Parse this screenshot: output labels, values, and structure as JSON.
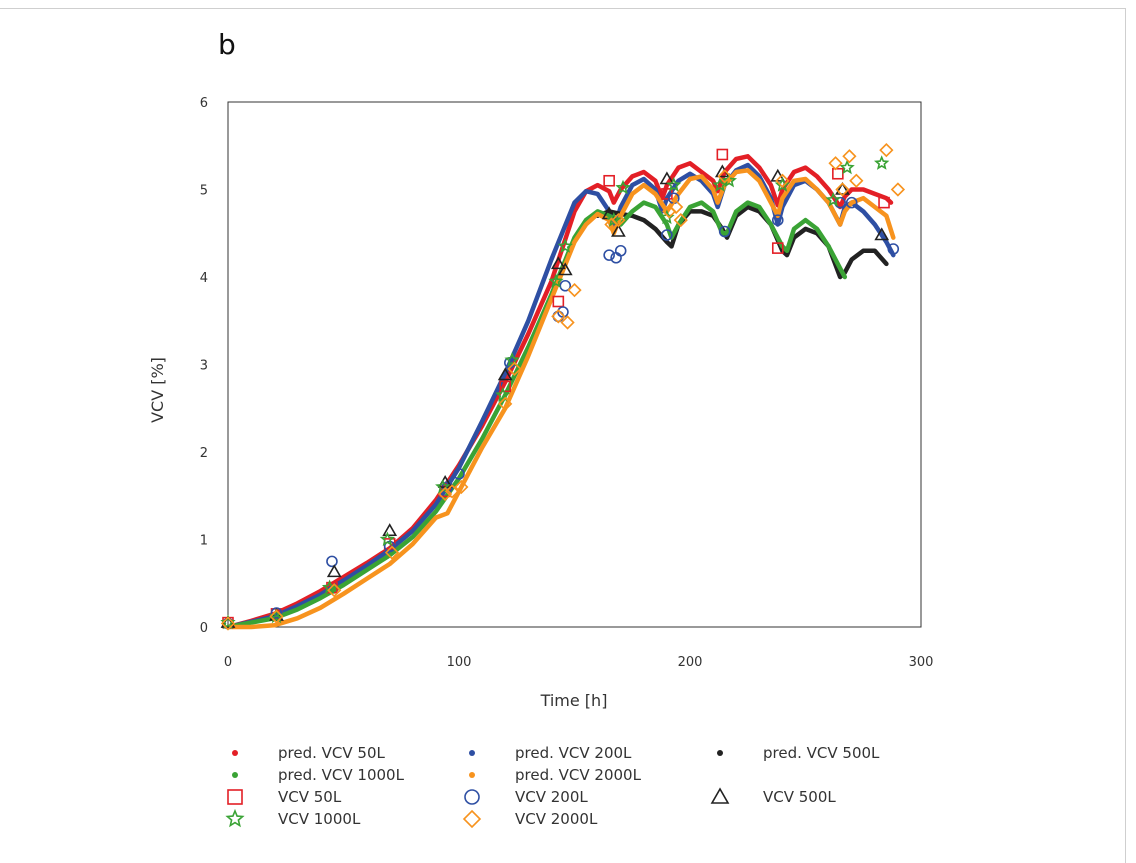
{
  "panel_label": "b",
  "colors": {
    "50L": "#e31f26",
    "200L": "#2e4fa3",
    "500L": "#222222",
    "1000L": "#3aa335",
    "2000L": "#f7931e"
  },
  "legend": [
    {
      "label": "pred. VCV 50L",
      "symbol": "dot",
      "series": "50L"
    },
    {
      "label": "pred. VCV 200L",
      "symbol": "dot",
      "series": "200L"
    },
    {
      "label": "pred. VCV 500L",
      "symbol": "dot",
      "series": "500L"
    },
    {
      "label": "pred. VCV 1000L",
      "symbol": "dot",
      "series": "1000L"
    },
    {
      "label": "pred. VCV 2000L",
      "symbol": "dot",
      "series": "2000L"
    },
    {
      "label": "VCV 50L",
      "symbol": "square",
      "series": "50L"
    },
    {
      "label": "VCV 200L",
      "symbol": "circle",
      "series": "200L"
    },
    {
      "label": "VCV 500L",
      "symbol": "triangle",
      "series": "500L"
    },
    {
      "label": "VCV 1000L",
      "symbol": "star",
      "series": "1000L"
    },
    {
      "label": "VCV 2000L",
      "symbol": "diamond",
      "series": "2000L"
    }
  ],
  "chart_data": {
    "type": "scatter",
    "title": "",
    "xlabel": "Time [h]",
    "ylabel": "VCV [%]",
    "xlim": [
      0,
      300
    ],
    "ylim": [
      0,
      6
    ],
    "xticks": [
      "0",
      "100",
      "200",
      "300"
    ],
    "yticks": [
      "0",
      "1",
      "2",
      "3",
      "4",
      "5",
      "6"
    ],
    "grid": false,
    "legend_position": "bottom",
    "prediction_series": [
      {
        "name": "pred. VCV 50L",
        "key": "50L",
        "x": [
          0,
          10,
          20,
          30,
          40,
          50,
          60,
          70,
          80,
          90,
          100,
          110,
          120,
          130,
          140,
          150,
          155,
          160,
          165,
          167,
          170,
          175,
          180,
          185,
          188,
          190,
          195,
          200,
          205,
          210,
          212,
          215,
          220,
          225,
          230,
          235,
          238,
          240,
          245,
          250,
          255,
          260,
          265,
          267,
          270,
          275,
          280,
          285,
          287
        ],
        "y": [
          0,
          0.07,
          0.15,
          0.27,
          0.41,
          0.57,
          0.73,
          0.9,
          1.13,
          1.45,
          1.85,
          2.3,
          2.8,
          3.35,
          3.95,
          4.75,
          4.98,
          5.05,
          4.98,
          4.85,
          5.0,
          5.15,
          5.2,
          5.1,
          4.9,
          5.05,
          5.25,
          5.3,
          5.2,
          5.1,
          4.98,
          5.2,
          5.35,
          5.38,
          5.25,
          5.05,
          4.82,
          5.0,
          5.2,
          5.25,
          5.15,
          5.0,
          4.8,
          4.92,
          5.0,
          5.0,
          4.95,
          4.9,
          4.85
        ]
      },
      {
        "name": "pred. VCV 200L",
        "key": "200L",
        "x": [
          0,
          10,
          20,
          30,
          40,
          50,
          60,
          70,
          80,
          90,
          100,
          110,
          120,
          130,
          140,
          150,
          155,
          160,
          165,
          167,
          170,
          175,
          180,
          185,
          188,
          190,
          195,
          200,
          205,
          210,
          212,
          215,
          220,
          225,
          230,
          235,
          238,
          240,
          245,
          250,
          255,
          260,
          265,
          267,
          270,
          275,
          280,
          285,
          288
        ],
        "y": [
          0,
          0.06,
          0.12,
          0.24,
          0.37,
          0.53,
          0.7,
          0.88,
          1.1,
          1.4,
          1.82,
          2.35,
          2.9,
          3.5,
          4.2,
          4.85,
          4.98,
          4.95,
          4.75,
          4.55,
          4.8,
          5.05,
          5.12,
          5.0,
          4.75,
          4.9,
          5.1,
          5.18,
          5.1,
          4.95,
          4.8,
          5.05,
          5.22,
          5.28,
          5.15,
          4.9,
          4.6,
          4.8,
          5.05,
          5.1,
          5.0,
          4.85,
          4.6,
          4.8,
          4.85,
          4.75,
          4.6,
          4.4,
          4.25
        ]
      },
      {
        "name": "pred. VCV 500L",
        "key": "500L",
        "x": [
          160,
          165,
          170,
          175,
          180,
          185,
          190,
          192,
          195,
          200,
          205,
          210,
          214,
          216,
          220,
          225,
          230,
          235,
          240,
          242,
          245,
          250,
          255,
          260,
          265,
          267,
          270,
          275,
          280,
          285
        ],
        "y": [
          4.7,
          4.75,
          4.72,
          4.7,
          4.65,
          4.55,
          4.4,
          4.35,
          4.6,
          4.75,
          4.75,
          4.7,
          4.55,
          4.45,
          4.7,
          4.8,
          4.75,
          4.6,
          4.3,
          4.25,
          4.45,
          4.55,
          4.5,
          4.35,
          4.0,
          4.05,
          4.2,
          4.3,
          4.3,
          4.15
        ]
      },
      {
        "name": "pred. VCV 1000L",
        "key": "1000L",
        "x": [
          0,
          10,
          20,
          30,
          40,
          50,
          60,
          70,
          80,
          90,
          100,
          110,
          120,
          130,
          140,
          150,
          155,
          160,
          165,
          170,
          175,
          180,
          185,
          190,
          192,
          195,
          200,
          205,
          210,
          214,
          216,
          220,
          225,
          230,
          235,
          240,
          242,
          245,
          250,
          255,
          260,
          265,
          267
        ],
        "y": [
          0,
          0.05,
          0.1,
          0.2,
          0.33,
          0.48,
          0.65,
          0.82,
          1.03,
          1.32,
          1.7,
          2.15,
          2.65,
          3.2,
          3.8,
          4.45,
          4.65,
          4.75,
          4.7,
          4.6,
          4.75,
          4.85,
          4.8,
          4.6,
          4.45,
          4.6,
          4.8,
          4.85,
          4.75,
          4.5,
          4.5,
          4.75,
          4.85,
          4.8,
          4.6,
          4.35,
          4.3,
          4.55,
          4.65,
          4.55,
          4.35,
          4.1,
          4.0
        ]
      },
      {
        "name": "pred. VCV 2000L",
        "key": "2000L",
        "x": [
          0,
          10,
          20,
          30,
          40,
          50,
          60,
          70,
          80,
          90,
          95,
          100,
          110,
          120,
          130,
          140,
          150,
          155,
          160,
          165,
          167,
          170,
          175,
          180,
          185,
          190,
          195,
          200,
          205,
          210,
          212,
          215,
          220,
          225,
          230,
          235,
          238,
          240,
          245,
          250,
          255,
          260,
          265,
          267,
          270,
          275,
          280,
          285,
          288
        ],
        "y": [
          0,
          0,
          0.02,
          0.1,
          0.22,
          0.38,
          0.55,
          0.72,
          0.95,
          1.25,
          1.3,
          1.55,
          2.05,
          2.5,
          3.1,
          3.75,
          4.4,
          4.6,
          4.72,
          4.65,
          4.5,
          4.7,
          4.95,
          5.05,
          4.95,
          4.75,
          4.95,
          5.12,
          5.15,
          5.0,
          4.85,
          5.05,
          5.2,
          5.22,
          5.1,
          4.85,
          4.7,
          4.9,
          5.1,
          5.12,
          5.0,
          4.85,
          4.6,
          4.75,
          4.85,
          4.9,
          4.8,
          4.7,
          4.45
        ]
      }
    ],
    "observed_series": [
      {
        "name": "VCV 50L",
        "key": "50L",
        "marker": "square",
        "x": [
          0,
          21,
          45,
          70,
          94,
          120,
          143,
          165,
          190,
          214,
          238,
          264,
          284
        ],
        "y": [
          0.05,
          0.15,
          0.45,
          0.95,
          1.55,
          2.75,
          3.72,
          5.1,
          4.95,
          5.4,
          4.33,
          5.18,
          4.85
        ]
      },
      {
        "name": "VCV 200L",
        "key": "200L",
        "marker": "circle",
        "x": [
          0,
          21,
          45,
          70,
          95,
          100,
          122,
          143,
          145,
          146,
          165,
          168,
          170,
          190,
          193,
          215,
          238,
          265,
          270,
          288
        ],
        "y": [
          0.04,
          0.16,
          0.75,
          0.92,
          1.6,
          1.75,
          3.02,
          3.55,
          3.6,
          3.9,
          4.25,
          4.22,
          4.3,
          4.48,
          4.9,
          4.52,
          4.65,
          4.85,
          4.85,
          4.32
        ]
      },
      {
        "name": "VCV 500L",
        "key": "500L",
        "marker": "triangle",
        "x": [
          0,
          21,
          46,
          70,
          94,
          120,
          143,
          146,
          165,
          169,
          190,
          214,
          238,
          266,
          283
        ],
        "y": [
          0.05,
          0.13,
          0.63,
          1.1,
          1.65,
          2.88,
          4.15,
          4.08,
          4.72,
          4.52,
          5.12,
          5.2,
          5.15,
          5.0,
          4.48
        ]
      },
      {
        "name": "VCV 1000L",
        "key": "1000L",
        "marker": "star",
        "x": [
          0,
          21,
          44,
          69,
          93,
          119,
          123,
          142,
          146,
          167,
          171,
          190,
          193,
          213,
          217,
          240,
          262,
          268,
          283
        ],
        "y": [
          0.05,
          0.12,
          0.45,
          1.0,
          1.6,
          2.65,
          3.05,
          3.95,
          4.35,
          4.65,
          5.02,
          4.68,
          5.05,
          5.05,
          5.1,
          5.05,
          4.88,
          5.25,
          5.3
        ]
      },
      {
        "name": "VCV 2000L",
        "key": "2000L",
        "marker": "diamond",
        "x": [
          0,
          21,
          46,
          71,
          94,
          97,
          101,
          120,
          124,
          143,
          147,
          150,
          166,
          169,
          191,
          194,
          196,
          215,
          240,
          263,
          266,
          269,
          272,
          285,
          290
        ],
        "y": [
          0.04,
          0.12,
          0.42,
          0.85,
          1.52,
          1.55,
          1.6,
          2.55,
          2.95,
          3.55,
          3.48,
          3.85,
          4.6,
          4.65,
          4.75,
          4.8,
          4.65,
          5.15,
          5.1,
          5.3,
          5.0,
          5.38,
          5.1,
          5.45,
          5.0
        ]
      }
    ]
  }
}
